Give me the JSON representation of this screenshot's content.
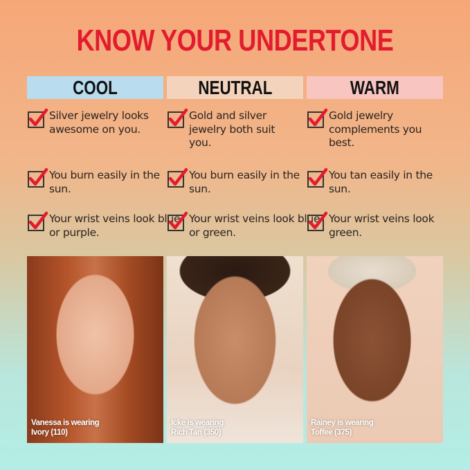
{
  "title": "KNOW YOUR UNDERTONE",
  "colors": {
    "title": "#e31b2e",
    "check": "#e31b2e",
    "cool": "#b9dcef",
    "neutral": "#f3d3bb",
    "warm": "#f8c5c0"
  },
  "columns": [
    {
      "heading": "COOL",
      "items": [
        "Silver jewelry looks awesome on you.",
        "You burn easily in the sun.",
        "Your wrist veins look blue or purple."
      ],
      "caption1": "Vanessa is wearing",
      "caption2": "Ivory (110)"
    },
    {
      "heading": "NEUTRAL",
      "items": [
        "Gold and silver jewelry both suit you.",
        "You burn easily in the sun.",
        "Your wrist veins look blue or green."
      ],
      "caption1": "Icke is wearing",
      "caption2": "Rich Tan (350)"
    },
    {
      "heading": "WARM",
      "items": [
        "Gold jewelry complements you best.",
        "You tan easily in the sun.",
        "Your wrist veins look green."
      ],
      "caption1": "Rainey is wearing",
      "caption2": "Toffee (375)"
    }
  ]
}
